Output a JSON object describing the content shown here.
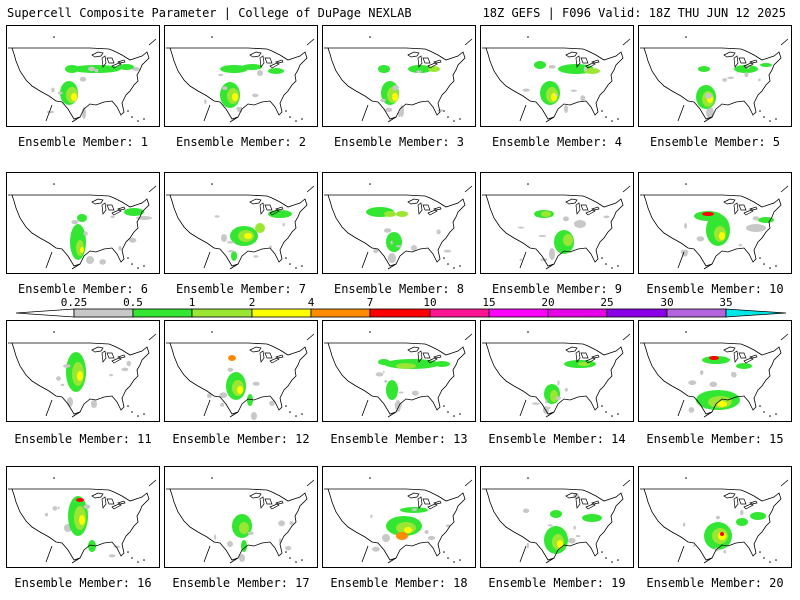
{
  "header": {
    "title": "Supercell Composite Parameter | College of DuPage NEXLAB",
    "valid": "18Z GEFS | F096 Valid: 18Z THU JUN 12 2025"
  },
  "members": [
    {
      "label": "Ensemble Member: 1"
    },
    {
      "label": "Ensemble Member: 2"
    },
    {
      "label": "Ensemble Member: 3"
    },
    {
      "label": "Ensemble Member: 4"
    },
    {
      "label": "Ensemble Member: 5"
    },
    {
      "label": "Ensemble Member: 6"
    },
    {
      "label": "Ensemble Member: 7"
    },
    {
      "label": "Ensemble Member: 8"
    },
    {
      "label": "Ensemble Member: 9"
    },
    {
      "label": "Ensemble Member: 10"
    },
    {
      "label": "Ensemble Member: 11"
    },
    {
      "label": "Ensemble Member: 12"
    },
    {
      "label": "Ensemble Member: 13"
    },
    {
      "label": "Ensemble Member: 14"
    },
    {
      "label": "Ensemble Member: 15"
    },
    {
      "label": "Ensemble Member: 16"
    },
    {
      "label": "Ensemble Member: 17"
    },
    {
      "label": "Ensemble Member: 18"
    },
    {
      "label": "Ensemble Member: 19"
    },
    {
      "label": "Ensemble Member: 20"
    }
  ],
  "colorbar": {
    "thresholds": [
      "0.25",
      "0.5",
      "1",
      "2",
      "4",
      "7",
      "10",
      "15",
      "20",
      "25",
      "30",
      "35"
    ],
    "colors": [
      "#c8c8c8",
      "#32e632",
      "#9be632",
      "#ffff00",
      "#ff8c00",
      "#ff0000",
      "#ff1493",
      "#ff00ff",
      "#e600e6",
      "#8a00e6",
      "#b464dc",
      "#00e6e6"
    ]
  }
}
